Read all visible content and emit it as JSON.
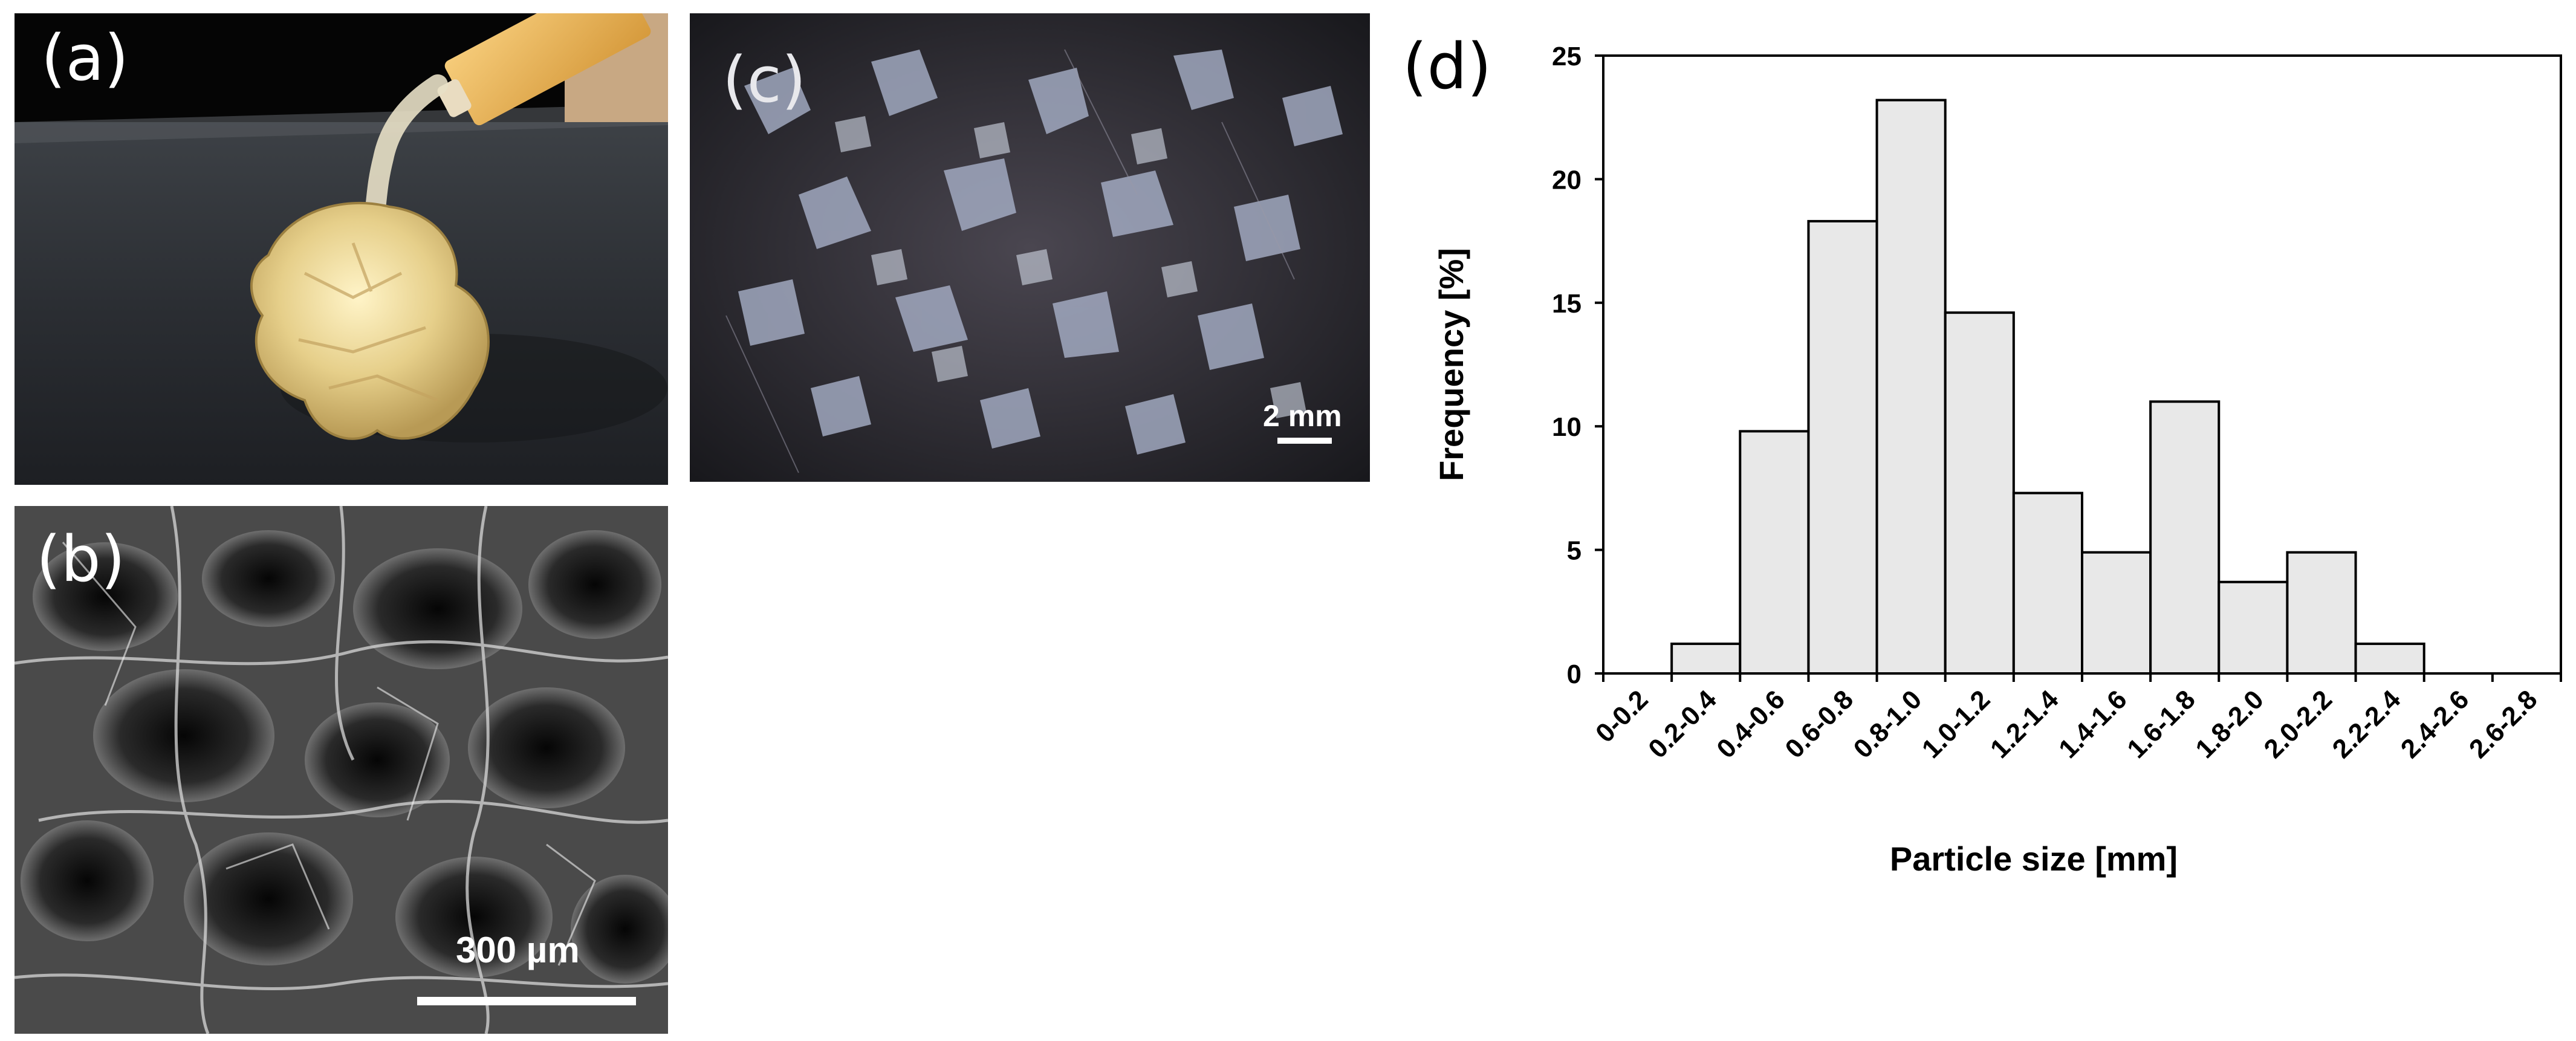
{
  "panels": {
    "a": {
      "label": "(a)"
    },
    "b": {
      "label": "(b)",
      "scale_bar": "300 µm"
    },
    "c": {
      "label": "(c)",
      "scale_bar": "2 mm"
    },
    "d": {
      "label": "(d)"
    }
  },
  "colors": {
    "bar_fill": "#e8e8e8",
    "bar_stroke": "#000000",
    "axis": "#000000"
  },
  "chart_data": {
    "type": "bar",
    "xlabel": "Particle size [mm]",
    "ylabel": "Frequency [%]",
    "ylim": [
      0,
      25
    ],
    "yticks": [
      0,
      5,
      10,
      15,
      20,
      25
    ],
    "grid": false,
    "categories": [
      "0-0.2",
      "0.2-0.4",
      "0.4-0.6",
      "0.6-0.8",
      "0.8-1.0",
      "1.0-1.2",
      "1.2-1.4",
      "1.4-1.6",
      "1.6-1.8",
      "1.8-2.0",
      "2.0-2.2",
      "2.2-2.4",
      "2.4-2.6",
      "2.6-2.8"
    ],
    "values": [
      0,
      1.2,
      9.8,
      18.3,
      23.2,
      14.6,
      7.3,
      4.9,
      11.0,
      3.7,
      4.9,
      1.2,
      0,
      0
    ]
  }
}
